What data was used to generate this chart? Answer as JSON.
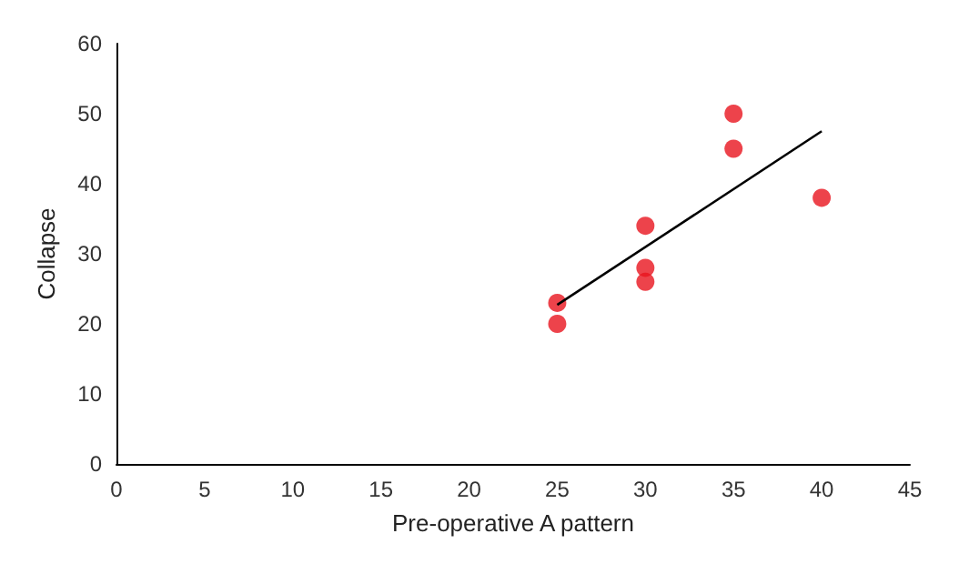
{
  "chart_data": {
    "type": "scatter",
    "xlabel": "Pre-operative A pattern",
    "ylabel": "Collapse",
    "xlim": [
      0,
      45
    ],
    "xticks": [
      0,
      5,
      10,
      15,
      20,
      25,
      30,
      35,
      40,
      45
    ],
    "ylim": [
      0,
      60
    ],
    "yticks": [
      0,
      10,
      20,
      30,
      40,
      50,
      60
    ],
    "grid": false,
    "marker": "circle",
    "series": [
      {
        "color": "#e8141e",
        "x": [
          25,
          25,
          30,
          30,
          30,
          35,
          35,
          40
        ],
        "values": [
          23,
          20,
          34,
          28,
          26,
          50,
          45,
          38
        ]
      },
      {
        "type": "line",
        "color": "#000000",
        "marker": "none",
        "line_style": "solid",
        "x": [
          25,
          40
        ],
        "values": [
          22.7,
          47.5
        ]
      }
    ]
  }
}
